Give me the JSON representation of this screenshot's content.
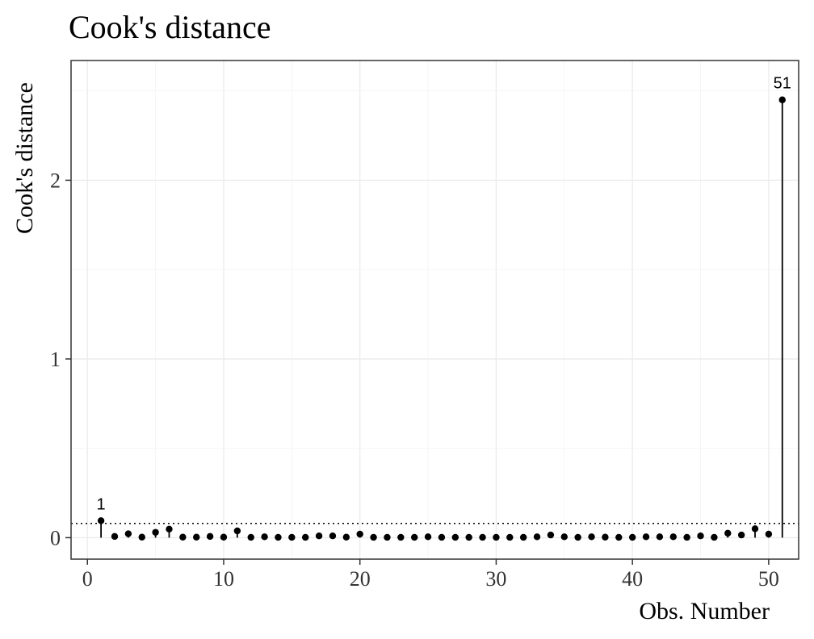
{
  "chart_data": {
    "type": "scatter",
    "title": "Cook's distance",
    "xlabel": "Obs. Number",
    "ylabel": "Cook's distance",
    "xlim": [
      -1.2,
      52.2
    ],
    "ylim": [
      -0.12,
      2.67
    ],
    "x_ticks": [
      0,
      10,
      20,
      30,
      40,
      50
    ],
    "x_tick_labels": [
      "0",
      "10",
      "20",
      "30",
      "40",
      "50"
    ],
    "y_ticks": [
      0,
      1,
      2
    ],
    "y_tick_labels": [
      "0",
      "1",
      "2"
    ],
    "grid": true,
    "threshold": 0.08,
    "x": [
      1,
      2,
      3,
      4,
      5,
      6,
      7,
      8,
      9,
      10,
      11,
      12,
      13,
      14,
      15,
      16,
      17,
      18,
      19,
      20,
      21,
      22,
      23,
      24,
      25,
      26,
      27,
      28,
      29,
      30,
      31,
      32,
      33,
      34,
      35,
      36,
      37,
      38,
      39,
      40,
      41,
      42,
      43,
      44,
      45,
      46,
      47,
      48,
      49,
      50,
      51
    ],
    "values": [
      0.095,
      0.007,
      0.022,
      0.003,
      0.03,
      0.048,
      0.003,
      0.003,
      0.007,
      0.003,
      0.038,
      0.002,
      0.005,
      0.002,
      0.002,
      0.002,
      0.01,
      0.01,
      0.003,
      0.02,
      0.002,
      0.002,
      0.002,
      0.002,
      0.005,
      0.002,
      0.002,
      0.002,
      0.002,
      0.002,
      0.002,
      0.002,
      0.005,
      0.015,
      0.005,
      0.002,
      0.005,
      0.003,
      0.002,
      0.002,
      0.005,
      0.005,
      0.005,
      0.002,
      0.01,
      0.002,
      0.025,
      0.015,
      0.05,
      0.02,
      2.45
    ],
    "point_labels": [
      {
        "x": 1,
        "text": "1"
      },
      {
        "x": 51,
        "text": "51"
      }
    ]
  }
}
